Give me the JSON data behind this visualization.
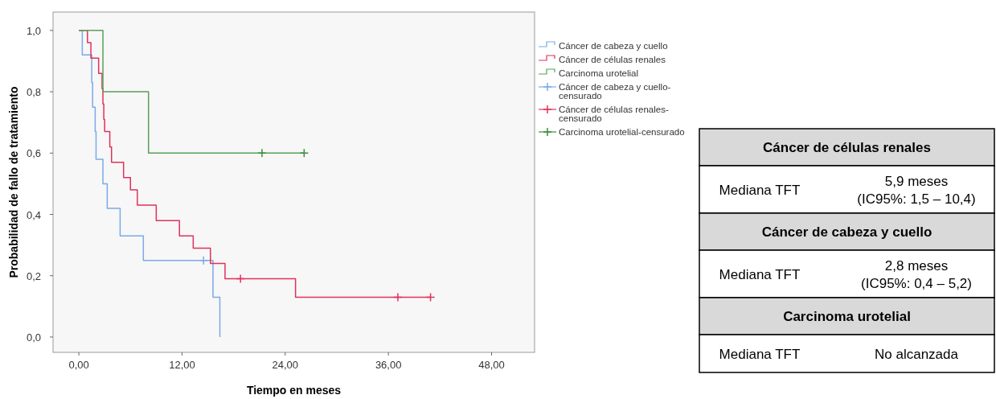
{
  "chart_data": [
    {
      "type": "step",
      "xlabel": "Tiempo en meses",
      "ylabel": "Probabilidad de fallo de tratamiento",
      "xlim": [
        -3,
        53
      ],
      "ylim": [
        -0.05,
        1.06
      ],
      "xticks": [
        {
          "value": 0,
          "label": "0,00"
        },
        {
          "value": 12,
          "label": "12,00"
        },
        {
          "value": 24,
          "label": "24,00"
        },
        {
          "value": 36,
          "label": "36,00"
        },
        {
          "value": 48,
          "label": "48,00"
        }
      ],
      "yticks": [
        {
          "value": 0,
          "label": "0,0"
        },
        {
          "value": 0.2,
          "label": "0,2"
        },
        {
          "value": 0.4,
          "label": "0,4"
        },
        {
          "value": 0.6,
          "label": "0,6"
        },
        {
          "value": 0.8,
          "label": "0,8"
        },
        {
          "value": 1,
          "label": "1,0"
        }
      ],
      "grid": false,
      "legend": "right",
      "series": [
        {
          "name": "Cáncer de cabeza y cuello",
          "color": "#7aaae8",
          "x": [
            0,
            0.4,
            1.5,
            1.6,
            1.9,
            2.0,
            2.8,
            3.3,
            4.8,
            7.5,
            15.6,
            16.4
          ],
          "values": [
            1,
            0.92,
            0.83,
            0.75,
            0.67,
            0.58,
            0.5,
            0.42,
            0.33,
            0.25,
            0.13,
            0
          ]
        },
        {
          "name": "Cáncer de células renales",
          "color": "#e0325a",
          "x": [
            0,
            1.0,
            1.4,
            2.3,
            2.7,
            2.8,
            2.9,
            3.0,
            3.6,
            3.8,
            5.2,
            6.0,
            6.8,
            9.0,
            11.7,
            13.3,
            15.3,
            17.0,
            25.2,
            40.9
          ],
          "values": [
            1,
            0.96,
            0.91,
            0.86,
            0.81,
            0.76,
            0.71,
            0.67,
            0.62,
            0.57,
            0.52,
            0.48,
            0.43,
            0.38,
            0.33,
            0.29,
            0.24,
            0.19,
            0.13,
            0.13
          ]
        },
        {
          "name": "Carcinoma urotelial",
          "color": "#5aa05a",
          "x": [
            0,
            2.8,
            8.1,
            26.2
          ],
          "values": [
            1,
            0.8,
            0.6,
            0.6
          ]
        },
        {
          "name": "Cáncer de cabeza y cuello-censurado",
          "type": "scatter",
          "marker": "cross",
          "color": "#7aaae8",
          "x": [
            14.5
          ],
          "values": [
            0.25
          ]
        },
        {
          "name": "Cáncer de células renales-censurado",
          "type": "scatter",
          "marker": "cross",
          "color": "#e0325a",
          "x": [
            18.8,
            37.1,
            40.9
          ],
          "values": [
            0.19,
            0.13,
            0.13
          ]
        },
        {
          "name": "Carcinoma urotelial-censurado",
          "type": "scatter",
          "marker": "cross",
          "color": "#3c8c3c",
          "x": [
            21.3,
            26.2
          ],
          "values": [
            0.6,
            0.6
          ]
        }
      ]
    },
    {
      "type": "other",
      "annotations": [
        "Cáncer de células renales",
        "Mediana TFT",
        "5,9 meses\n(IC95%: 1,5 – 10,4)",
        "Cáncer de cabeza y cuello",
        "Mediana TFT",
        "2,8 meses\n(IC95%: 0,4 – 5,2)",
        "Carcinoma urotelial",
        "Mediana TFT",
        "No alcanzada"
      ]
    }
  ]
}
